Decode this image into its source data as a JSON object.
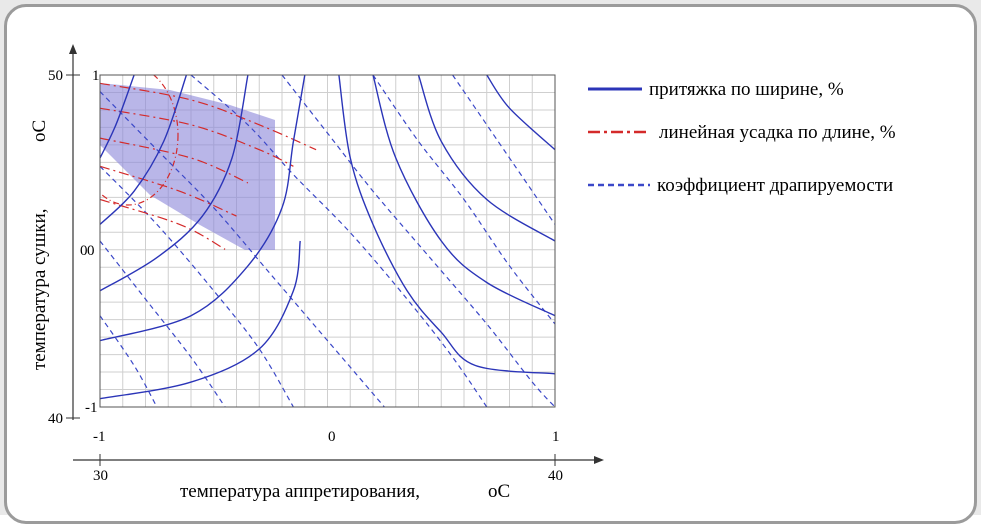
{
  "chart_data": {
    "type": "line",
    "subtype": "contour-overlay",
    "title": "",
    "xlabel": "температура аппретирования,",
    "xlabel_unit": "oC",
    "ylabel": "температура сушки,",
    "ylabel_unit": "oC",
    "x_coded_range": [
      -1,
      1
    ],
    "y_coded_range": [
      -1,
      1
    ],
    "x_coded_ticks": [
      "-1",
      "0",
      "1"
    ],
    "y_coded_ticks": [
      "1",
      "0",
      "-1"
    ],
    "x_natural_ticks": [
      "30",
      "40"
    ],
    "y_natural_ticks": [
      "50",
      "0",
      "40"
    ],
    "grid": true,
    "legend_position": "right",
    "shaded_region": {
      "color": "#8b86d8",
      "description": "optimal area"
    },
    "series": [
      {
        "name": "притяжка по ширине, %",
        "style": "solid",
        "color": "#2b35b8",
        "values": [
          [
            [
              -1,
              -0.95
            ],
            [
              -0.6,
              -0.85
            ],
            [
              -0.3,
              -0.65
            ],
            [
              -0.15,
              -0.3
            ],
            [
              -0.12,
              0.0
            ]
          ],
          [
            [
              -1,
              -0.6
            ],
            [
              -0.6,
              -0.45
            ],
            [
              -0.35,
              -0.15
            ],
            [
              -0.2,
              0.2
            ],
            [
              -0.15,
              0.6
            ],
            [
              -0.1,
              1.0
            ]
          ],
          [
            [
              -1,
              -0.3
            ],
            [
              -0.75,
              -0.1
            ],
            [
              -0.55,
              0.15
            ],
            [
              -0.42,
              0.5
            ],
            [
              -0.35,
              1.0
            ]
          ],
          [
            [
              -1,
              0.1
            ],
            [
              -0.85,
              0.3
            ],
            [
              -0.72,
              0.6
            ],
            [
              -0.62,
              1.0
            ]
          ],
          [
            [
              -1,
              0.5
            ],
            [
              -0.93,
              0.7
            ],
            [
              -0.85,
              1.0
            ]
          ],
          [
            [
              0.05,
              1.0
            ],
            [
              0.1,
              0.5
            ],
            [
              0.2,
              0.1
            ],
            [
              0.35,
              -0.3
            ],
            [
              0.5,
              -0.55
            ],
            [
              0.65,
              -0.75
            ],
            [
              1.0,
              -0.8
            ]
          ],
          [
            [
              0.2,
              1.0
            ],
            [
              0.3,
              0.5
            ],
            [
              0.5,
              0.0
            ],
            [
              0.7,
              -0.25
            ],
            [
              1.0,
              -0.45
            ]
          ],
          [
            [
              0.4,
              1.0
            ],
            [
              0.5,
              0.6
            ],
            [
              0.7,
              0.25
            ],
            [
              1.0,
              0.0
            ]
          ],
          [
            [
              0.7,
              1.0
            ],
            [
              0.8,
              0.8
            ],
            [
              1.0,
              0.55
            ]
          ]
        ]
      },
      {
        "name": "линейная усадка по длине, %",
        "style": "dash-dot",
        "color": "#d42a2a",
        "values": [
          [
            [
              -1,
              0.95
            ],
            [
              -0.6,
              0.85
            ],
            [
              -0.3,
              0.7
            ],
            [
              -0.05,
              0.55
            ]
          ],
          [
            [
              -1,
              0.8
            ],
            [
              -0.6,
              0.7
            ],
            [
              -0.3,
              0.55
            ],
            [
              -0.15,
              0.45
            ]
          ],
          [
            [
              -1,
              0.62
            ],
            [
              -0.6,
              0.5
            ],
            [
              -0.35,
              0.35
            ]
          ],
          [
            [
              -1,
              0.45
            ],
            [
              -0.65,
              0.3
            ],
            [
              -0.4,
              0.15
            ]
          ],
          [
            [
              -1,
              0.25
            ],
            [
              -0.65,
              0.1
            ],
            [
              -0.45,
              -0.05
            ]
          ]
        ]
      },
      {
        "name": "коэффициент драпируемости",
        "style": "dashed",
        "color": "#3b48c8",
        "values": [
          [
            [
              -0.6,
              1.0
            ],
            [
              -0.35,
              0.7
            ],
            [
              -0.15,
              0.4
            ],
            [
              0.1,
              0.05
            ],
            [
              0.35,
              -0.35
            ],
            [
              0.55,
              -0.7
            ],
            [
              0.7,
              -1.0
            ]
          ],
          [
            [
              -0.2,
              1.0
            ],
            [
              0.0,
              0.65
            ],
            [
              0.2,
              0.3
            ],
            [
              0.45,
              -0.1
            ],
            [
              0.7,
              -0.5
            ],
            [
              0.9,
              -0.85
            ],
            [
              1.0,
              -1.0
            ]
          ],
          [
            [
              0.2,
              1.0
            ],
            [
              0.4,
              0.6
            ],
            [
              0.6,
              0.25
            ],
            [
              0.8,
              -0.15
            ],
            [
              1.0,
              -0.5
            ]
          ],
          [
            [
              0.55,
              1.0
            ],
            [
              0.75,
              0.6
            ],
            [
              0.9,
              0.3
            ],
            [
              1.0,
              0.1
            ]
          ],
          [
            [
              -1,
              0.9
            ],
            [
              -0.75,
              0.55
            ],
            [
              -0.5,
              0.2
            ],
            [
              -0.25,
              -0.2
            ],
            [
              0.0,
              -0.6
            ],
            [
              0.25,
              -1.0
            ]
          ],
          [
            [
              -1,
              0.45
            ],
            [
              -0.75,
              0.1
            ],
            [
              -0.5,
              -0.3
            ],
            [
              -0.3,
              -0.65
            ],
            [
              -0.15,
              -1.0
            ]
          ],
          [
            [
              -1,
              0.0
            ],
            [
              -0.8,
              -0.35
            ],
            [
              -0.6,
              -0.7
            ],
            [
              -0.45,
              -1.0
            ]
          ],
          [
            [
              -1,
              -0.45
            ],
            [
              -0.85,
              -0.75
            ],
            [
              -0.75,
              -1.0
            ]
          ]
        ]
      }
    ]
  },
  "legend": [
    {
      "label": "притяжка по ширине, %",
      "style": "solid",
      "color": "#2b35b8"
    },
    {
      "label": "линейная усадка по длине, %",
      "style": "dash-dot",
      "color": "#d42a2a"
    },
    {
      "label": "коэффициент драпируемости",
      "style": "dashed",
      "color": "#3b48c8"
    }
  ]
}
